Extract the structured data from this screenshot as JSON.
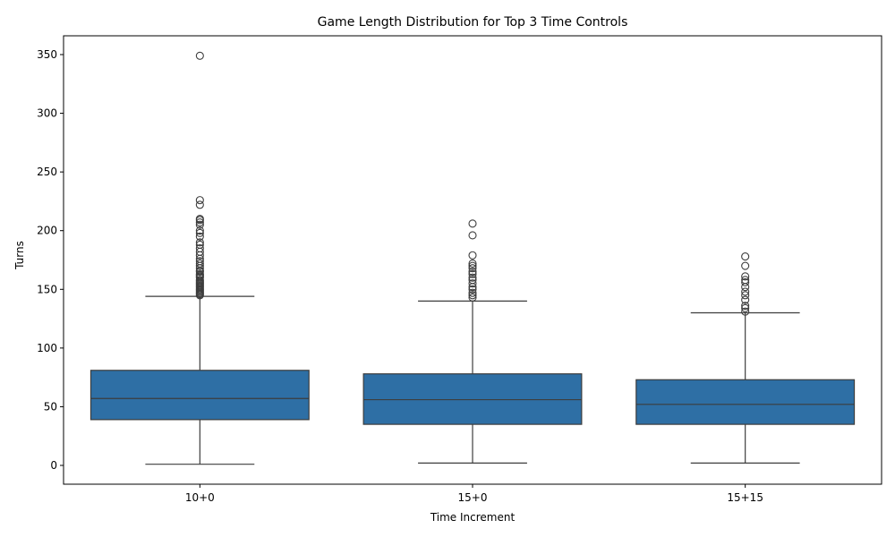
{
  "chart_data": {
    "type": "box",
    "title": "Game Length Distribution for Top 3 Time Controls",
    "xlabel": "Time Increment",
    "ylabel": "Turns",
    "ylim": [
      -16,
      366
    ],
    "yticks": [
      0,
      50,
      100,
      150,
      200,
      250,
      300,
      350
    ],
    "grid": false,
    "categories": [
      "10+0",
      "15+0",
      "15+15"
    ],
    "box_color": "#2e6fa5",
    "line_color": "#3d3d3d",
    "boxes": [
      {
        "category": "10+0",
        "whisker_low": 1,
        "q1": 39,
        "median": 57,
        "q3": 81,
        "whisker_high": 144,
        "outliers": [
          145,
          146,
          147,
          148,
          149,
          150,
          151,
          152,
          153,
          154,
          155,
          156,
          157,
          158,
          160,
          161,
          162,
          163,
          165,
          166,
          168,
          170,
          172,
          174,
          176,
          179,
          182,
          185,
          188,
          190,
          195,
          198,
          200,
          205,
          207,
          209,
          210,
          222,
          226,
          349
        ]
      },
      {
        "category": "15+0",
        "whisker_low": 2,
        "q1": 35,
        "median": 56,
        "q3": 78,
        "whisker_high": 140,
        "outliers": [
          143,
          145,
          147,
          150,
          152,
          155,
          158,
          160,
          163,
          165,
          168,
          170,
          172,
          179,
          196,
          206
        ]
      },
      {
        "category": "15+15",
        "whisker_low": 2,
        "q1": 35,
        "median": 52,
        "q3": 73,
        "whisker_high": 130,
        "outliers": [
          131,
          134,
          136,
          141,
          145,
          148,
          152,
          156,
          158,
          161,
          170,
          178
        ]
      }
    ]
  }
}
